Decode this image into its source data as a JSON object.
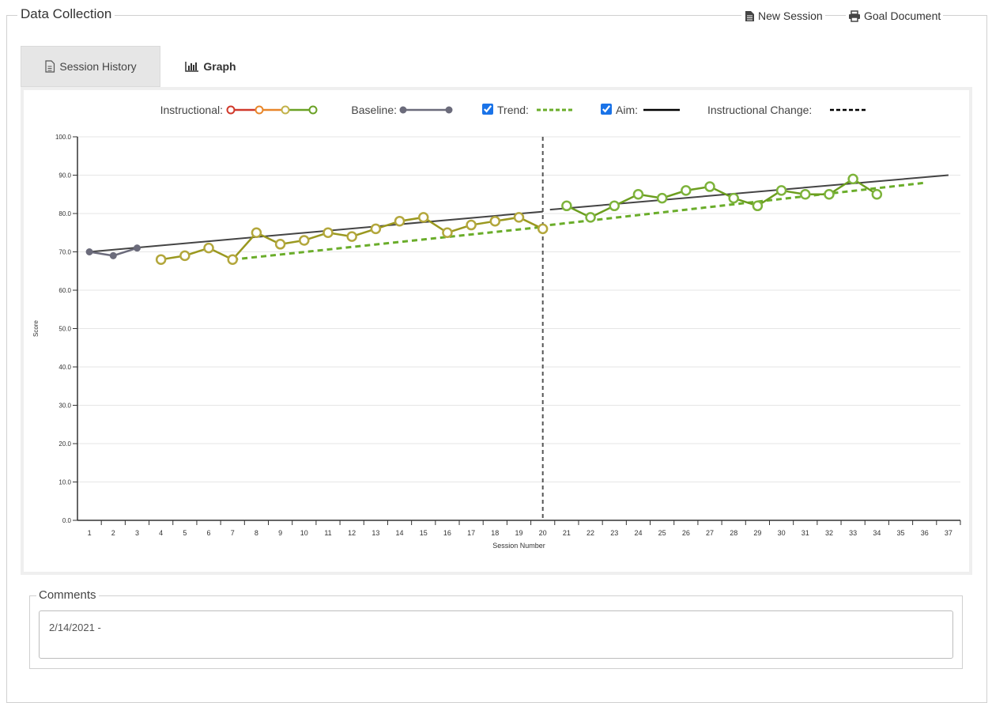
{
  "header": {
    "title": "Data Collection",
    "actions": [
      "New Session",
      "Goal Document"
    ]
  },
  "tabs": [
    {
      "label": "Session History",
      "active": false
    },
    {
      "label": "Graph",
      "active": true
    }
  ],
  "chart_data": {
    "type": "line",
    "xlabel": "Session Number",
    "ylabel": "Score",
    "categories": [
      "1",
      "2",
      "3",
      "4",
      "5",
      "6",
      "7",
      "8",
      "9",
      "10",
      "11",
      "12",
      "13",
      "14",
      "15",
      "16",
      "17",
      "18",
      "19",
      "20",
      "21",
      "22",
      "23",
      "24",
      "25",
      "26",
      "27",
      "28",
      "29",
      "30",
      "31",
      "32",
      "33",
      "34",
      "35",
      "36",
      "37"
    ],
    "series": [
      {
        "color": "#6b6b7b",
        "marker_color": "#6b6b7b",
        "marker_filled": true,
        "values": [
          70,
          69,
          71,
          null,
          null,
          null,
          null,
          null,
          null,
          null,
          null,
          null,
          null,
          null,
          null,
          null,
          null,
          null,
          null,
          null,
          null,
          null,
          null,
          null,
          null,
          null,
          null,
          null,
          null,
          null,
          null,
          null,
          null,
          null,
          null,
          null,
          null
        ]
      },
      {
        "color": "#9a981f",
        "marker_color": "#b3a73c",
        "marker_filled": false,
        "values": [
          null,
          null,
          null,
          68,
          69,
          71,
          68,
          75,
          72,
          73,
          75,
          74,
          76,
          78,
          79,
          75,
          77,
          78,
          79,
          76,
          null,
          null,
          null,
          null,
          null,
          null,
          null,
          null,
          null,
          null,
          null,
          null,
          null,
          null,
          null,
          null,
          null
        ]
      },
      {
        "color": "#6c9e1f",
        "marker_color": "#7db33b",
        "marker_filled": false,
        "values": [
          null,
          null,
          null,
          null,
          null,
          null,
          null,
          null,
          null,
          null,
          null,
          null,
          null,
          null,
          null,
          null,
          null,
          null,
          null,
          null,
          82,
          79,
          82,
          85,
          84,
          86,
          87,
          84,
          82,
          86,
          85,
          85,
          89,
          85,
          null,
          null,
          null
        ]
      }
    ],
    "trend": [
      {
        "x": [
          7,
          20
        ],
        "y": [
          68,
          76.5
        ]
      },
      {
        "x": [
          20.3,
          36
        ],
        "y": [
          77,
          88
        ]
      }
    ],
    "aim": [
      {
        "x": [
          1,
          20
        ],
        "y": [
          70,
          80.5
        ]
      },
      {
        "x": [
          20.3,
          37
        ],
        "y": [
          81,
          90
        ]
      }
    ],
    "trend_color": "#6aad2a",
    "aim_color": "#444444",
    "trend_visible": true,
    "aim_visible": true,
    "phase_change_x": 20,
    "ylim": [
      0,
      100
    ],
    "yticks": [
      {
        "value": 0,
        "label": "0.0"
      },
      {
        "value": 10,
        "label": "10.0"
      },
      {
        "value": 20,
        "label": "20.0"
      },
      {
        "value": 30,
        "label": "30.0"
      },
      {
        "value": 40,
        "label": "40.0"
      },
      {
        "value": 50,
        "label": "50.0"
      },
      {
        "value": 60,
        "label": "60.0"
      },
      {
        "value": 70,
        "label": "70.0"
      },
      {
        "value": 80,
        "label": "80.0"
      },
      {
        "value": 90,
        "label": "90.0"
      },
      {
        "value": 100,
        "label": "100.0"
      }
    ],
    "grid": true,
    "legend": {
      "instructional": "Instructional:",
      "baseline": "Baseline:",
      "trend": "Trend:",
      "aim": "Aim:",
      "change": "Instructional Change:"
    }
  },
  "comments": {
    "title": "Comments",
    "text": "2/14/2021 -"
  }
}
